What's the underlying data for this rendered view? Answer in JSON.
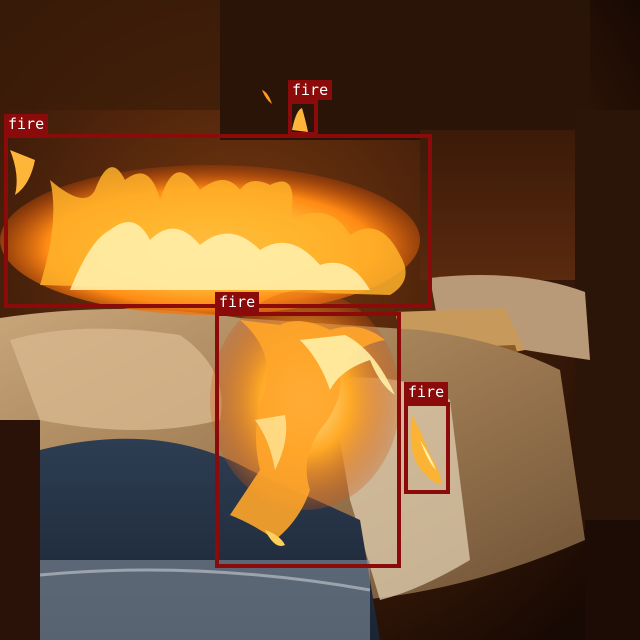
{
  "image": {
    "description_kind": "photo of a burning mattress and bedding with object-detection boxes",
    "palette": {
      "box_color": "#8b0a0a",
      "label_text_color": "#ffffff"
    }
  },
  "detections": [
    {
      "label": "fire"
    },
    {
      "label": "fire"
    },
    {
      "label": "fire"
    },
    {
      "label": "fire"
    }
  ]
}
